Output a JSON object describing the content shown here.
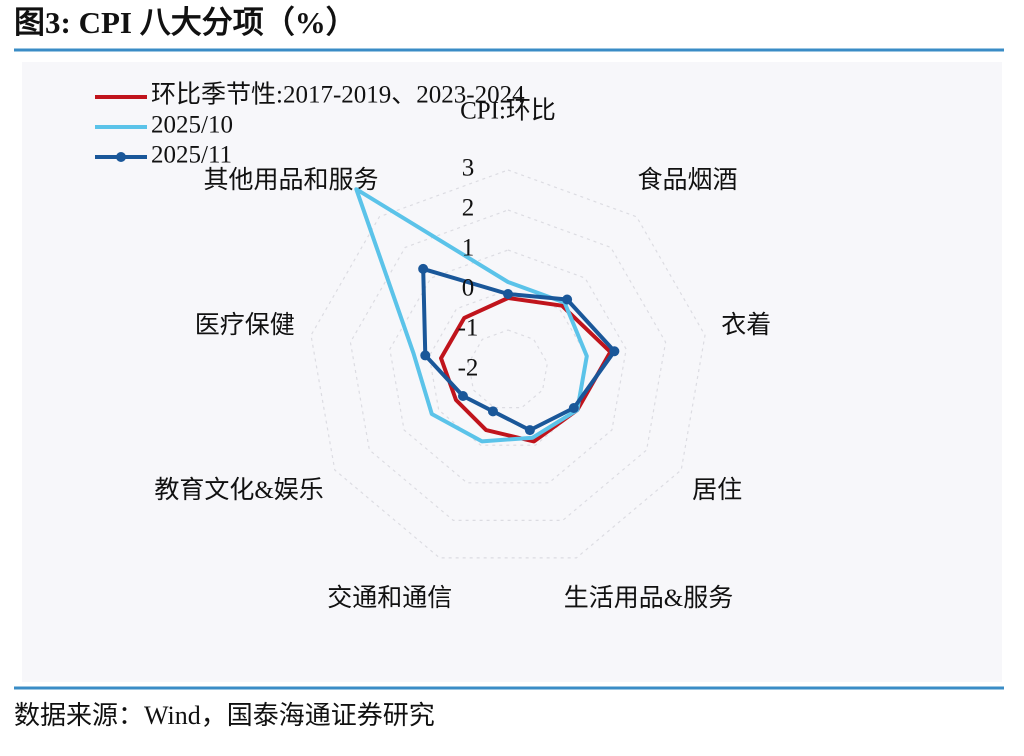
{
  "chart_data": {
    "type": "radar",
    "title": "图3:  CPI 八大分项（%）",
    "categories": [
      "CPI:环比",
      "食品烟酒",
      "衣着",
      "居住",
      "生活用品&服务",
      "交通和通信",
      "教育文化&娱乐",
      "医疗保健",
      "其他用品和服务"
    ],
    "series": [
      {
        "name": "环比季节性:2017-2019、2023-2024",
        "color": "#c0141c",
        "marker": "none",
        "values": [
          -0.2,
          0.1,
          0.6,
          0.0,
          -0.1,
          -0.4,
          -0.5,
          -0.3,
          -0.3
        ]
      },
      {
        "name": "2025/10",
        "color": "#5bc3e9",
        "marker": "none",
        "values": [
          0.2,
          0.2,
          0.0,
          0.0,
          -0.2,
          -0.1,
          0.2,
          0.4,
          3.9
        ]
      },
      {
        "name": "2025/11",
        "color": "#1a5799",
        "marker": "circle",
        "values": [
          -0.1,
          0.3,
          0.7,
          -0.1,
          -0.4,
          -0.9,
          -0.7,
          0.1,
          1.3
        ]
      }
    ],
    "ylim": [
      -2,
      3
    ],
    "yticks": [
      -2,
      -1,
      0,
      1,
      2,
      3
    ],
    "grid": true,
    "legend": "upper left"
  },
  "source": "数据来源：Wind，国泰海通证券研究"
}
